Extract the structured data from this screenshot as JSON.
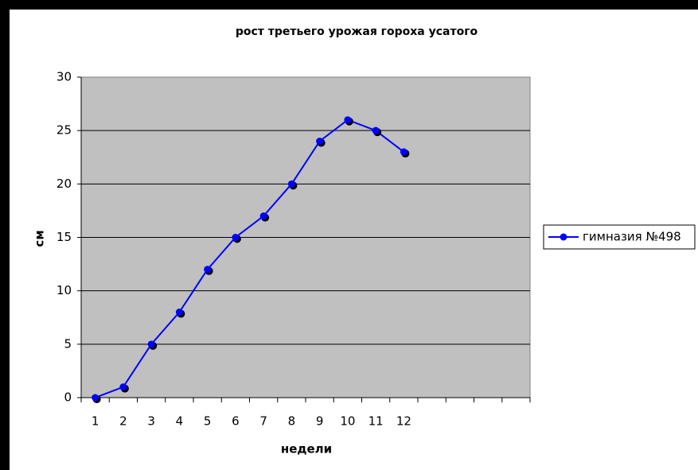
{
  "chart_data": {
    "type": "line",
    "title": "рост третьего урожая гороха усатого",
    "x_label": "недели",
    "y_label": "см",
    "categories": [
      1,
      2,
      3,
      4,
      5,
      6,
      7,
      8,
      9,
      10,
      11,
      12,
      null,
      null,
      null,
      null
    ],
    "series": [
      {
        "name": "гимназия №498",
        "color": "#0000ff",
        "values": [
          0,
          1,
          5,
          8,
          12,
          15,
          17,
          20,
          24,
          26,
          25,
          23,
          null,
          null,
          null,
          null
        ]
      }
    ],
    "ylim": [
      0,
      30
    ],
    "yticks": [
      0,
      5,
      10,
      15,
      20,
      25,
      30
    ],
    "grid": true,
    "legend": "right"
  }
}
